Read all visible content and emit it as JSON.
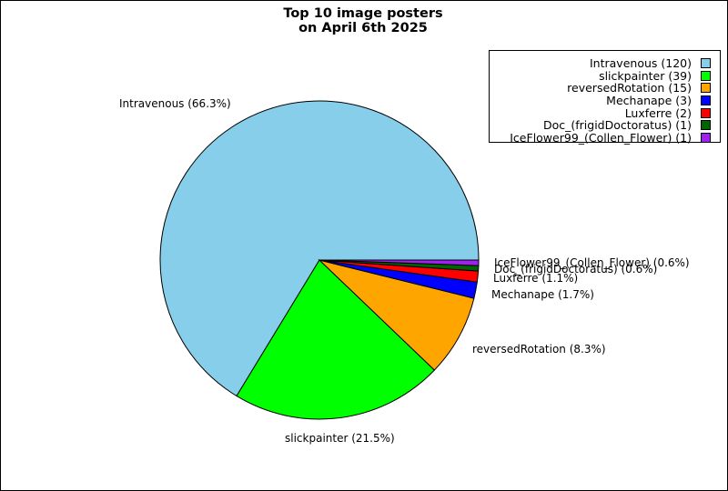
{
  "chart_data": {
    "type": "pie",
    "title": "Top 10 image posters",
    "subtitle": "on April 6th 2025",
    "categories": [
      "Intravenous",
      "slickpainter",
      "reversedRotation",
      "Mechanape",
      "Luxferre",
      "Doc_(frigidDoctoratus)",
      "IceFlower99_(Collen_Flower)"
    ],
    "values": [
      120,
      39,
      15,
      3,
      2,
      1,
      1
    ],
    "percent_labels": [
      "Intravenous (66.3%)",
      "slickpainter (21.5%)",
      "reversedRotation (8.3%)",
      "Mechanape (1.7%)",
      "Luxferre (1.1%)",
      "Doc_(frigidDoctoratus) (0.6%)",
      "IceFlower99_(Collen_Flower) (0.6%)"
    ],
    "legend_labels": [
      "Intravenous (120)",
      "slickpainter (39)",
      "reversedRotation (15)",
      "Mechanape (3)",
      "Luxferre (2)",
      "Doc_(frigidDoctoratus) (1)",
      "IceFlower99_(Collen_Flower) (1)"
    ],
    "colors": [
      "#87CEEB",
      "#00FF00",
      "#FFA500",
      "#0000FF",
      "#FF0000",
      "#006400",
      "#A020F0"
    ],
    "legend_position": "top-right"
  }
}
